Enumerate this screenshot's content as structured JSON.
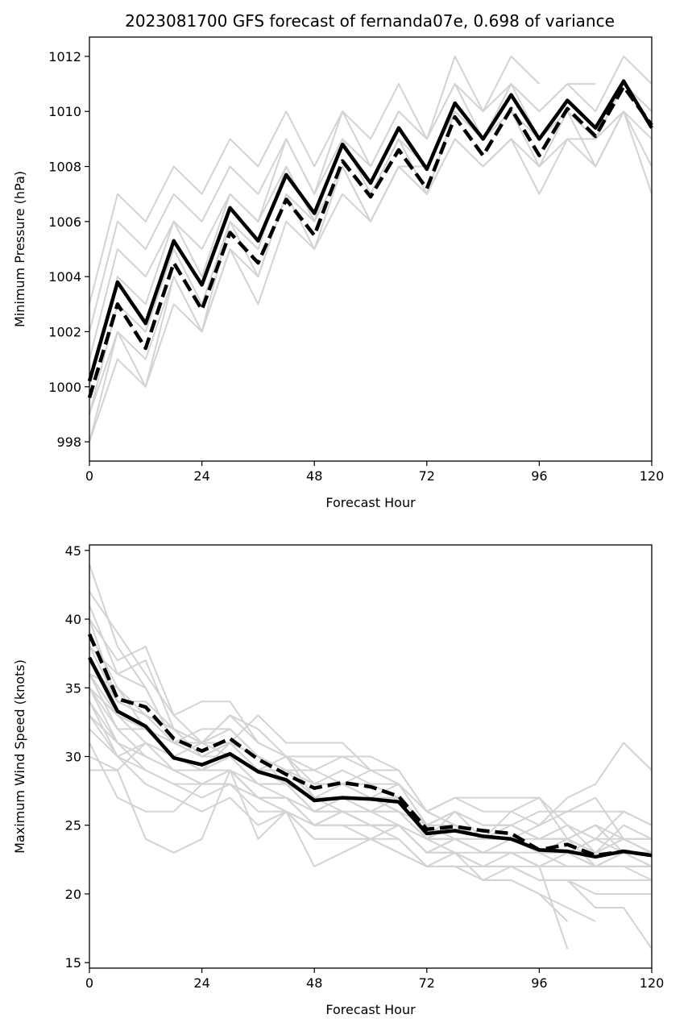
{
  "title": "2023081700 GFS forecast of fernanda07e, 0.698 of variance",
  "chart_data": [
    {
      "type": "line",
      "xlabel": "Forecast Hour",
      "ylabel": "Minimum Pressure (hPa)",
      "xlim": [
        0,
        120
      ],
      "ylim": [
        997.3,
        1012.7
      ],
      "xticks": [
        0,
        24,
        48,
        72,
        96,
        120
      ],
      "yticks": [
        998,
        1000,
        1002,
        1004,
        1006,
        1008,
        1010,
        1012
      ],
      "grid": false,
      "x": [
        0,
        6,
        12,
        18,
        24,
        30,
        36,
        42,
        48,
        54,
        60,
        66,
        72,
        78,
        84,
        90,
        96,
        102,
        108,
        114,
        120
      ],
      "series": [
        {
          "style": "solid",
          "color": "#000000",
          "values": [
            1000.2,
            1003.8,
            1002.3,
            1005.3,
            1003.7,
            1006.5,
            1005.3,
            1007.7,
            1006.3,
            1008.8,
            1007.4,
            1009.4,
            1007.9,
            1010.3,
            1009.0,
            1010.6,
            1009.0,
            1010.4,
            1009.4,
            1011.1,
            1009.4
          ]
        },
        {
          "style": "dashed",
          "color": "#000000",
          "values": [
            999.6,
            1003.0,
            1001.4,
            1004.5,
            1002.8,
            1005.6,
            1004.5,
            1006.8,
            1005.5,
            1008.2,
            1006.9,
            1008.6,
            1007.2,
            1009.8,
            1008.4,
            1010.1,
            1008.4,
            1010.1,
            1009.1,
            1010.9,
            1009.5
          ]
        }
      ],
      "members": [
        [
          1003,
          1007,
          1006,
          1008,
          1007,
          1009,
          1008,
          1010,
          1008,
          1010,
          1009,
          1011,
          1009,
          1012,
          1010,
          1012,
          1011
        ],
        [
          1002,
          1006,
          1005,
          1007,
          1006,
          1008,
          1007,
          1009,
          1007,
          1010,
          1008,
          1010,
          1009,
          1011,
          1010,
          1011,
          1010,
          1011,
          1011
        ],
        [
          1001,
          1005,
          1004,
          1006,
          1005,
          1007,
          1006,
          1009,
          1007,
          1009,
          1008,
          1010,
          1009,
          1011,
          1009,
          1011,
          1010,
          1011,
          1010,
          1012,
          1011
        ],
        [
          1000,
          1004,
          1003,
          1006,
          1004,
          1007,
          1006,
          1008,
          1006,
          1009,
          1007,
          1009,
          1008,
          1010,
          1009,
          1011,
          1009,
          1010,
          1009,
          1011,
          1010
        ],
        [
          999,
          1003,
          1002,
          1005,
          1003,
          1006,
          1005,
          1008,
          1006,
          1009,
          1007,
          1009,
          1007,
          1010,
          1009,
          1010,
          1009,
          1010,
          1009,
          1011,
          1010
        ],
        [
          998,
          1002,
          1001,
          1004,
          1002,
          1005,
          1004,
          1007,
          1005,
          1008,
          1006,
          1008,
          1007,
          1009,
          1008,
          1009,
          1008,
          1009,
          1008,
          1010,
          1008
        ],
        [
          998,
          1001,
          1000,
          1003,
          1002,
          1005,
          1003,
          1006,
          1005,
          1007,
          1006,
          1008,
          1007,
          1009,
          1008,
          1009,
          1007,
          1009,
          1009,
          1010,
          1007
        ],
        [
          999,
          1002,
          1000,
          1004,
          1002,
          1006,
          1004,
          1007,
          1006,
          1008,
          1006,
          1008,
          1008,
          1010,
          1009,
          1010,
          1008,
          1010,
          1008,
          1010,
          1009
        ]
      ]
    },
    {
      "type": "line",
      "xlabel": "Forecast Hour",
      "ylabel": "Maximum Wind Speed (knots)",
      "xlim": [
        0,
        120
      ],
      "ylim": [
        14.6,
        45.4
      ],
      "xticks": [
        0,
        24,
        48,
        72,
        96,
        120
      ],
      "yticks": [
        15,
        20,
        25,
        30,
        35,
        40,
        45
      ],
      "grid": false,
      "x": [
        0,
        6,
        12,
        18,
        24,
        30,
        36,
        42,
        48,
        54,
        60,
        66,
        72,
        78,
        84,
        90,
        96,
        102,
        108,
        114,
        120
      ],
      "series": [
        {
          "style": "solid",
          "color": "#000000",
          "values": [
            37.2,
            33.3,
            32.2,
            29.9,
            29.4,
            30.2,
            28.9,
            28.3,
            26.8,
            27.0,
            26.9,
            26.7,
            24.4,
            24.6,
            24.2,
            24.0,
            23.2,
            23.1,
            22.7,
            23.1,
            22.8
          ]
        },
        {
          "style": "dashed",
          "color": "#000000",
          "values": [
            38.9,
            34.2,
            33.6,
            31.3,
            30.4,
            31.3,
            29.8,
            28.7,
            27.7,
            28.1,
            27.8,
            27.1,
            24.7,
            24.9,
            24.6,
            24.4,
            23.2,
            23.6,
            22.8,
            23.1,
            22.8
          ]
        }
      ],
      "members": [
        [
          44,
          38,
          35,
          31,
          30,
          31,
          29,
          28,
          26,
          27,
          26,
          27,
          24,
          25,
          24,
          24,
          23,
          23,
          22,
          23,
          22
        ],
        [
          42,
          39,
          36,
          33,
          31,
          32,
          30,
          29,
          28,
          28,
          27,
          27,
          25,
          26,
          25,
          25,
          24,
          24,
          23,
          24,
          23
        ],
        [
          41,
          36,
          37,
          32,
          31,
          32,
          30,
          29,
          28,
          29,
          28,
          28,
          25,
          25,
          24,
          24,
          24,
          24,
          22,
          23,
          22
        ],
        [
          40,
          37,
          38,
          33,
          34,
          34,
          31,
          30,
          29,
          30,
          29,
          28,
          26,
          25,
          24,
          25,
          24,
          25,
          24,
          24,
          23
        ],
        [
          39,
          35,
          33,
          31,
          30,
          31,
          29,
          30,
          28,
          28,
          28,
          27,
          25,
          26,
          25,
          25,
          24,
          24,
          23,
          24,
          24
        ],
        [
          38,
          34,
          34,
          32,
          31,
          33,
          32,
          30,
          27,
          28,
          27,
          28,
          26,
          27,
          26,
          26,
          25,
          26,
          26,
          26,
          25
        ],
        [
          37,
          33,
          32,
          30,
          29,
          30,
          29,
          29,
          27,
          27,
          27,
          26,
          24,
          24,
          24,
          24,
          23,
          23,
          23,
          23,
          23
        ],
        [
          36,
          32,
          32,
          31,
          30,
          30,
          28,
          28,
          27,
          27,
          26,
          26,
          24,
          24,
          23,
          23,
          23,
          22,
          22,
          22,
          22
        ],
        [
          36,
          33,
          31,
          29,
          29,
          30,
          28,
          28,
          26,
          26,
          25,
          25,
          23,
          24,
          23,
          23,
          22,
          22,
          22,
          22,
          21
        ],
        [
          35,
          32,
          30,
          29,
          28,
          29,
          27,
          27,
          25,
          26,
          25,
          25,
          23,
          23,
          23,
          23,
          22,
          22,
          22,
          22,
          22
        ],
        [
          35,
          31,
          29,
          28,
          28,
          29,
          27,
          27,
          26,
          26,
          25,
          25,
          23,
          23,
          22,
          22,
          21,
          21,
          21,
          21,
          21
        ],
        [
          34,
          31,
          30,
          29,
          28,
          28,
          27,
          26,
          25,
          25,
          25,
          24,
          22,
          23,
          22,
          22,
          21,
          21,
          20,
          20,
          20
        ],
        [
          34,
          30,
          31,
          30,
          29,
          29,
          27,
          26,
          25,
          25,
          24,
          24,
          22,
          22,
          22,
          22,
          21,
          21,
          19,
          19,
          16
        ],
        [
          33,
          30,
          29,
          28,
          27,
          28,
          26,
          26,
          24,
          24,
          24,
          23,
          22,
          22,
          21,
          21,
          20,
          19,
          18
        ],
        [
          33,
          31,
          30,
          29,
          28,
          28,
          27,
          27,
          25,
          26,
          25,
          25,
          23,
          23,
          22,
          23,
          22,
          16
        ],
        [
          32,
          30,
          28,
          27,
          26,
          27,
          25,
          26,
          24,
          24,
          24,
          23,
          22,
          22,
          21,
          21,
          20,
          18
        ],
        [
          31,
          27,
          26,
          26,
          28,
          29,
          28,
          27,
          26,
          27,
          27,
          26,
          24,
          24,
          23,
          23,
          22,
          23,
          24,
          23,
          23
        ],
        [
          30,
          29,
          24,
          23,
          24,
          29,
          24,
          26,
          22,
          23,
          24,
          25,
          24,
          23,
          21,
          22,
          22,
          23,
          24,
          26,
          25
        ],
        [
          29,
          29,
          31,
          30,
          31,
          31,
          30,
          29,
          29,
          28,
          29,
          28,
          25,
          26,
          24,
          24,
          23,
          24,
          25,
          24,
          24
        ],
        [
          36,
          35,
          32,
          31,
          32,
          32,
          30,
          28,
          27,
          26,
          26,
          25,
          23,
          24,
          23,
          24,
          25,
          27,
          28,
          31,
          29
        ],
        [
          37,
          34,
          33,
          32,
          31,
          33,
          31,
          30,
          30,
          30,
          30,
          29,
          26,
          27,
          27,
          27,
          27,
          25,
          23,
          25,
          24
        ],
        [
          35,
          33,
          32,
          30,
          29,
          31,
          33,
          31,
          31,
          31,
          29,
          29,
          26,
          25,
          24,
          24,
          23,
          23,
          22,
          22,
          22
        ],
        [
          38,
          36,
          35,
          31,
          31,
          30,
          29,
          28,
          27,
          27,
          26,
          26,
          25,
          24,
          24,
          25,
          26,
          26,
          27,
          24,
          23
        ],
        [
          40,
          34,
          33,
          32,
          30,
          31,
          30,
          29,
          28,
          28,
          27,
          27,
          24,
          26,
          24,
          26,
          27,
          24,
          25,
          23,
          23
        ]
      ]
    }
  ]
}
